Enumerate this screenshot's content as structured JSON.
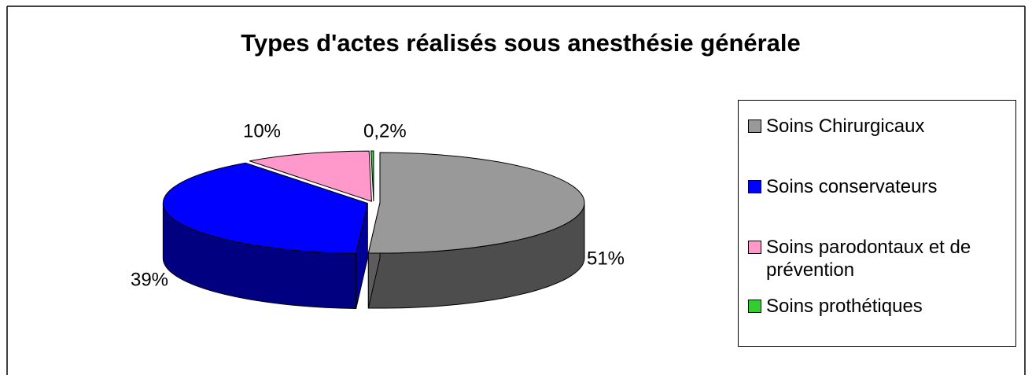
{
  "chart_data": {
    "type": "pie3d",
    "title": "Types d'actes réalisés sous anesthésie générale",
    "categories": [
      "Soins Chirurgicaux",
      "Soins conservateurs",
      "Soins parodontaux et de prévention",
      "Soins prothétiques"
    ],
    "values": [
      51,
      39,
      10,
      0.2
    ],
    "value_labels": [
      "51%",
      "39%",
      "10%",
      "0,2%"
    ],
    "colors": [
      "#999999",
      "#0000ff",
      "#ff99cc",
      "#33cc33"
    ],
    "legend": "right"
  }
}
